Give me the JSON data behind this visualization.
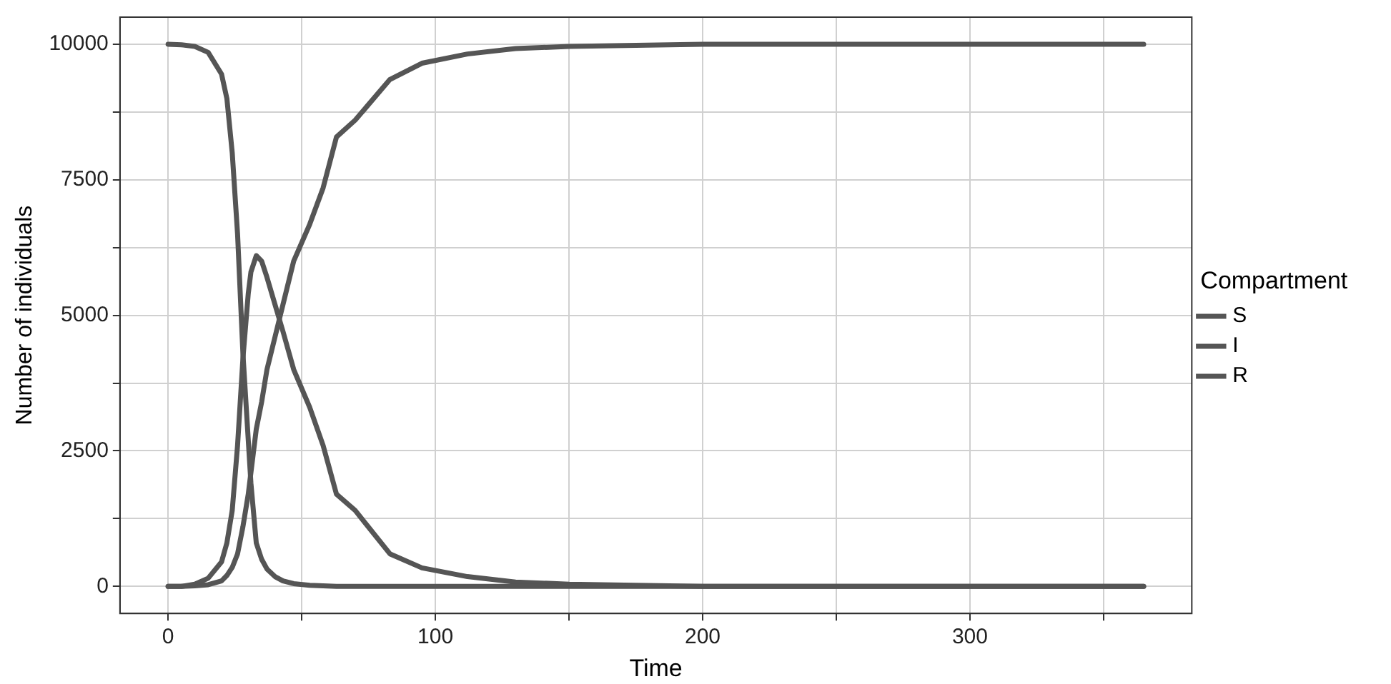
{
  "chart_data": {
    "type": "line",
    "xlabel": "Time",
    "ylabel": "Number of individuals",
    "legend_title": "Compartment",
    "legend": "right",
    "grid": true,
    "marker": "none",
    "line_style": "solid",
    "x": [
      0,
      5,
      10,
      15,
      20,
      22,
      24,
      26,
      28,
      30,
      31,
      33,
      35,
      37,
      40,
      43,
      47,
      53,
      58,
      63,
      70,
      83,
      95,
      112,
      130,
      150,
      175,
      200,
      250,
      300,
      365
    ],
    "xlim": [
      -18,
      383
    ],
    "ylim": [
      -500,
      10500
    ],
    "xticks": [
      0,
      {
        "value": 50,
        "label": null
      },
      100,
      {
        "value": 150,
        "label": null
      },
      200,
      {
        "value": 250,
        "label": null
      },
      300,
      {
        "value": 350,
        "label": null
      }
    ],
    "yticks": [
      0,
      {
        "value": 1250,
        "label": null
      },
      2500,
      {
        "value": 3750,
        "label": null
      },
      5000,
      {
        "value": 6250,
        "label": null
      },
      7500,
      {
        "value": 8750,
        "label": null
      },
      10000
    ],
    "series": [
      {
        "name": "S",
        "color": "#555555",
        "values": [
          10000,
          9990,
          9960,
          9850,
          9450,
          9000,
          8000,
          6500,
          4300,
          2700,
          1900,
          800,
          500,
          320,
          180,
          100,
          50,
          20,
          10,
          0,
          0,
          0,
          0,
          0,
          0,
          0,
          0,
          0,
          0,
          0,
          0
        ]
      },
      {
        "name": "I",
        "color": "#555555",
        "values": [
          0,
          0,
          40,
          150,
          450,
          800,
          1400,
          2600,
          4200,
          5400,
          5800,
          6100,
          6000,
          5700,
          5200,
          4700,
          4000,
          3300,
          2600,
          1700,
          1400,
          600,
          340,
          180,
          80,
          40,
          20,
          0,
          0,
          0,
          0
        ]
      },
      {
        "name": "R",
        "color": "#555555",
        "values": [
          0,
          0,
          10,
          30,
          100,
          200,
          350,
          600,
          1100,
          1700,
          2100,
          2900,
          3400,
          4000,
          4600,
          5200,
          6000,
          6680,
          7350,
          8290,
          8600,
          9350,
          9650,
          9820,
          9920,
          9960,
          9980,
          10000,
          10000,
          10000,
          10000
        ]
      }
    ]
  }
}
